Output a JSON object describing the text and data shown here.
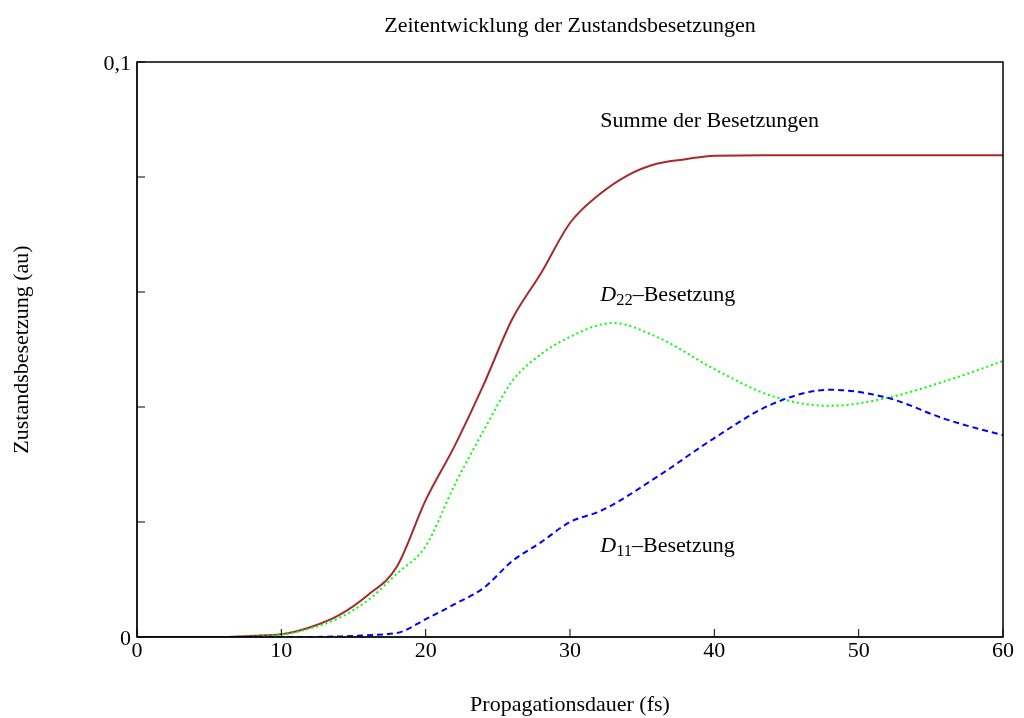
{
  "chart_data": {
    "type": "line",
    "title": "Zeitentwicklung der Zustandsbesetzungen",
    "xlabel": "Propagationsdauer (fs)",
    "ylabel": "Zustandsbesetzung (au)",
    "xlim": [
      0,
      60
    ],
    "xticks": [
      0,
      10,
      20,
      30,
      40,
      50,
      60
    ],
    "ylim": [
      0,
      0.1
    ],
    "yticks": [
      {
        "value": 0,
        "label": "0"
      },
      {
        "value": 0.02,
        "label": null
      },
      {
        "value": 0.04,
        "label": null
      },
      {
        "value": 0.06,
        "label": null
      },
      {
        "value": 0.08,
        "label": null
      },
      {
        "value": 0.1,
        "label": "0,1"
      }
    ],
    "marker": "none",
    "series": [
      {
        "name": "Summe der Besetzungen",
        "color": "#a52a2a",
        "line_style": "solid",
        "x": [
          0,
          6,
          8,
          10,
          12,
          14,
          16,
          18,
          20,
          22,
          24,
          26,
          28,
          30,
          32,
          34,
          36,
          38,
          40,
          44,
          50,
          60
        ],
        "values": [
          0,
          0,
          0.0002,
          0.0005,
          0.0017,
          0.0038,
          0.0073,
          0.0122,
          0.0238,
          0.0332,
          0.0438,
          0.0553,
          0.0633,
          0.072,
          0.0769,
          0.0803,
          0.0823,
          0.0831,
          0.0837,
          0.0838,
          0.0838,
          0.0838
        ]
      },
      {
        "name": "D$_{22}$–Besetzung",
        "color": "#00ff00",
        "line_style": "dotted",
        "x": [
          0,
          6,
          8,
          10,
          12,
          14,
          16,
          18,
          20,
          22,
          24,
          26,
          28,
          30,
          33,
          36,
          40,
          44,
          48,
          52,
          56,
          60
        ],
        "values": [
          0,
          0,
          0.0001,
          0.0004,
          0.0015,
          0.0033,
          0.0064,
          0.011,
          0.0158,
          0.0264,
          0.0358,
          0.0445,
          0.0492,
          0.0522,
          0.0546,
          0.0522,
          0.0466,
          0.0419,
          0.0402,
          0.0416,
          0.0445,
          0.048
        ]
      },
      {
        "name": "D$_{11}$–Besetzung",
        "color": "#0000ff",
        "line_style": "dashed",
        "x": [
          0,
          12,
          14,
          16,
          18,
          20,
          22,
          24,
          26,
          28,
          30,
          32,
          36,
          40,
          44,
          48,
          52,
          56,
          60
        ],
        "values": [
          0,
          0,
          0.0001,
          0.0003,
          0.0007,
          0.0031,
          0.0057,
          0.0085,
          0.0132,
          0.0165,
          0.02,
          0.0218,
          0.0278,
          0.0346,
          0.0405,
          0.043,
          0.0416,
          0.0379,
          0.0351
        ]
      }
    ]
  }
}
